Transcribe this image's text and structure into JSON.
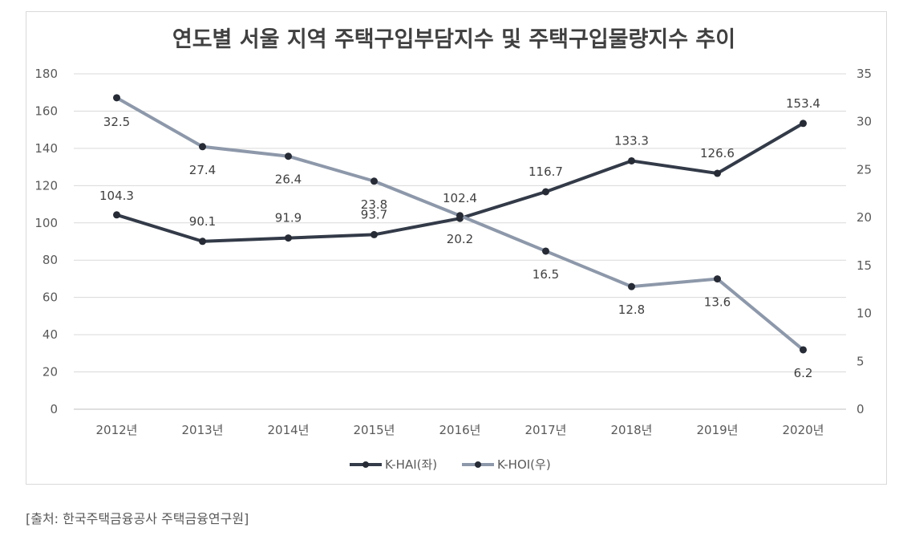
{
  "source": "[출처: 한국주택금융공사 주택금융연구원]",
  "chart_data": {
    "type": "line",
    "title": "연도별 서울 지역 주택구입부담지수 및 주택구입물량지수 추이",
    "categories": [
      "2012년",
      "2013년",
      "2014년",
      "2015년",
      "2016년",
      "2017년",
      "2018년",
      "2019년",
      "2020년"
    ],
    "y_left": {
      "min": 0,
      "max": 180,
      "ticks": [
        0,
        20,
        40,
        60,
        80,
        100,
        120,
        140,
        160,
        180
      ]
    },
    "y_right": {
      "min": 0,
      "max": 35,
      "ticks": [
        0,
        5,
        10,
        15,
        20,
        25,
        30,
        35
      ]
    },
    "grid": true,
    "legend_position": "bottom-center",
    "series": [
      {
        "name": "K-HAI(좌)",
        "axis": "left",
        "color": "#333a48",
        "values": [
          104.3,
          90.1,
          91.9,
          93.7,
          102.4,
          116.7,
          133.3,
          126.6,
          153.4
        ],
        "labels": [
          "104.3",
          "90.1",
          "91.9",
          "93.7",
          "102.4",
          "116.7",
          "133.3",
          "126.6",
          "153.4"
        ]
      },
      {
        "name": "K-HOI(우)",
        "axis": "right",
        "color": "#8d98aa",
        "values": [
          32.5,
          27.4,
          26.4,
          23.8,
          20.2,
          16.5,
          12.8,
          13.6,
          6.2
        ],
        "labels": [
          "32.5",
          "27.4",
          "26.4",
          "23.8",
          "20.2",
          "16.5",
          "12.8",
          "13.6",
          "6.2"
        ]
      }
    ]
  }
}
